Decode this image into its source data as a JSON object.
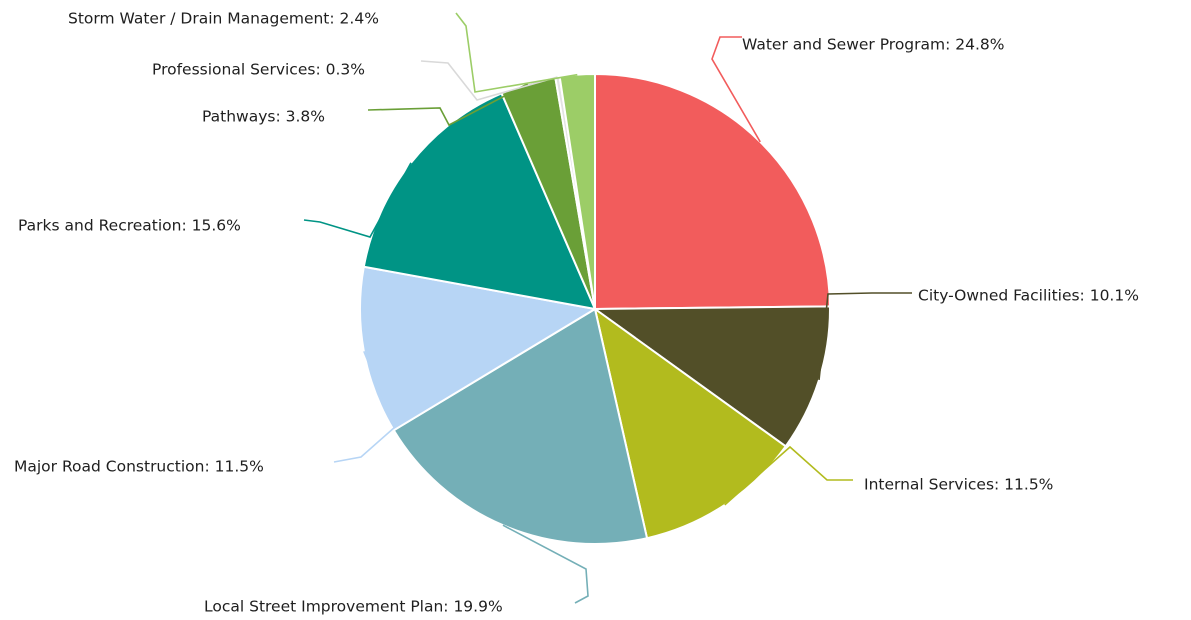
{
  "chart_data": {
    "type": "pie",
    "start_angle_deg": 0,
    "direction": "clockwise",
    "slices": [
      {
        "label": "Water and Sewer Program: 24.8%",
        "category": "Water and Sewer Program",
        "value": 24.8,
        "color": "#f25c5c",
        "line_color": "#f25c5c"
      },
      {
        "label": "City-Owned Facilities: 10.1%",
        "category": "City-Owned Facilities",
        "value": 10.1,
        "color": "#524f28",
        "line_color": "#524f28"
      },
      {
        "label": "Internal Services: 11.5%",
        "category": "Internal Services",
        "value": 11.5,
        "color": "#b2bb1e",
        "line_color": "#b2bb1e"
      },
      {
        "label": "Local Street Improvement Plan: 19.9%",
        "category": "Local Street Improvement Plan",
        "value": 19.9,
        "color": "#74afb7",
        "line_color": "#74afb7"
      },
      {
        "label": "Major Road Construction: 11.5%",
        "category": "Major Road Construction",
        "value": 11.5,
        "color": "#b7d5f5",
        "line_color": "#b7d5f5"
      },
      {
        "label": "Parks and Recreation: 15.6%",
        "category": "Parks and Recreation",
        "value": 15.6,
        "color": "#009485",
        "line_color": "#009485"
      },
      {
        "label": "Pathways: 3.8%",
        "category": "Pathways",
        "value": 3.8,
        "color": "#6a9f37",
        "line_color": "#6a9f37"
      },
      {
        "label": "Professional Services: 0.3%",
        "category": "Professional Services",
        "value": 0.3,
        "color": "#e3e3e3",
        "line_color": "#d9d9d9"
      },
      {
        "label": "Storm Water / Drain Management: 2.4%",
        "category": "Storm Water / Drain Management",
        "value": 2.4,
        "color": "#9ccd67",
        "line_color": "#9ccd67"
      }
    ]
  }
}
